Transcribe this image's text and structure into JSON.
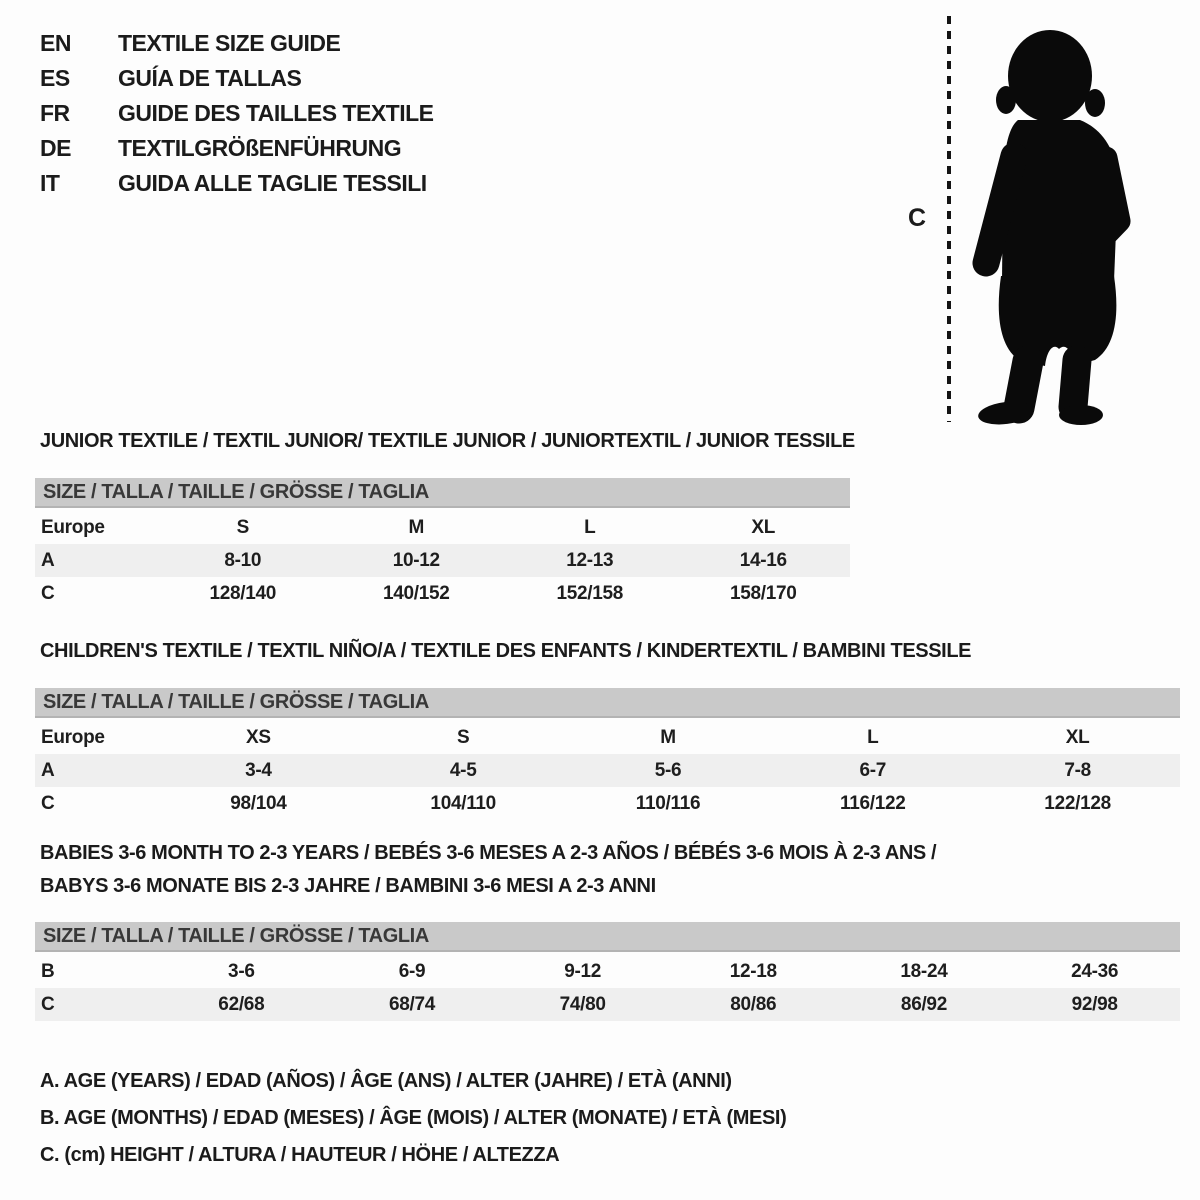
{
  "colors": {
    "background": "#fdfdfd",
    "text": "#1b1b1b",
    "size_bar": "#c9c9c9",
    "row_stripe": "#efefef",
    "silhouette": "#0a0a0a"
  },
  "languages": [
    {
      "code": "EN",
      "title": "TEXTILE SIZE GUIDE"
    },
    {
      "code": "ES",
      "title": "GUÍA DE TALLAS"
    },
    {
      "code": "FR",
      "title": "GUIDE DES TAILLES TEXTILE"
    },
    {
      "code": "DE",
      "title": "TEXTILGRÖßENFÜHRUNG"
    },
    {
      "code": "IT",
      "title": "GUIDA ALLE TAGLIE TESSILI"
    }
  ],
  "figure": {
    "label": "C",
    "icon": "toddler-silhouette-icon"
  },
  "sections": [
    {
      "id": "junior",
      "title": "JUNIOR TEXTILE / TEXTIL JUNIOR/ TEXTILE JUNIOR / JUNIORTEXTIL / JUNIOR TESSILE",
      "title2": "",
      "size_header": "SIZE / TALLA / TAILLE / GRÖSSE / TAGLIA",
      "rows": [
        {
          "label": "Europe",
          "shade": false,
          "values": [
            "S",
            "M",
            "L",
            "XL"
          ]
        },
        {
          "label": "A",
          "shade": true,
          "values": [
            "8-10",
            "10-12",
            "12-13",
            "14-16"
          ]
        },
        {
          "label": "C",
          "shade": false,
          "values": [
            "128/140",
            "140/152",
            "152/158",
            "158/170"
          ]
        }
      ]
    },
    {
      "id": "children",
      "title": "CHILDREN'S TEXTILE / TEXTIL NIÑO/A / TEXTILE DES ENFANTS / KINDERTEXTIL / BAMBINI TESSILE",
      "title2": "",
      "size_header": "SIZE / TALLA / TAILLE / GRÖSSE / TAGLIA",
      "rows": [
        {
          "label": "Europe",
          "shade": false,
          "values": [
            "XS",
            "S",
            "M",
            "L",
            "XL"
          ]
        },
        {
          "label": "A",
          "shade": true,
          "values": [
            "3-4",
            "4-5",
            "5-6",
            "6-7",
            "7-8"
          ]
        },
        {
          "label": "C",
          "shade": false,
          "values": [
            "98/104",
            "104/110",
            "110/116",
            "116/122",
            "122/128"
          ]
        }
      ]
    },
    {
      "id": "babies",
      "title": "BABIES 3-6 MONTH TO 2-3 YEARS / BEBÉS 3-6 MESES A 2-3 AÑOS / BÉBÉS 3-6 MOIS À 2-3 ANS /",
      "title2": "BABYS 3-6 MONATE BIS 2-3 JAHRE / BAMBINI 3-6 MESI A 2-3 ANNI",
      "size_header": "SIZE / TALLA / TAILLE / GRÖSSE / TAGLIA",
      "rows": [
        {
          "label": "B",
          "shade": false,
          "values": [
            "3-6",
            "6-9",
            "9-12",
            "12-18",
            "18-24",
            "24-36"
          ]
        },
        {
          "label": "C",
          "shade": true,
          "values": [
            "62/68",
            "68/74",
            "74/80",
            "80/86",
            "86/92",
            "92/98"
          ]
        }
      ]
    }
  ],
  "legend": [
    "A. AGE (YEARS) / EDAD (AÑOS) / ÂGE (ANS) / ALTER (JAHRE) / ETÀ (ANNI)",
    "B. AGE (MONTHS) / EDAD (MESES) / ÂGE (MOIS) / ALTER (MONATE) / ETÀ (MESI)",
    "C. (cm) HEIGHT / ALTURA / HAUTEUR / HÖHE / ALTEZZA"
  ]
}
